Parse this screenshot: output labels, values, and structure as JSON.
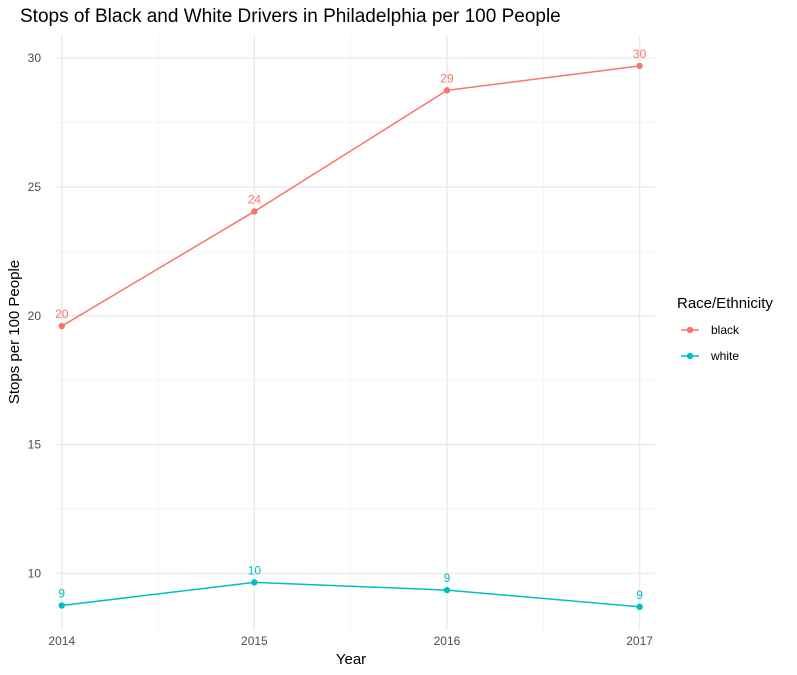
{
  "chart_data": {
    "type": "line",
    "title": "Stops of Black and White Drivers in Philadelphia per 100 People",
    "xlabel": "Year",
    "ylabel": "Stops per 100 People",
    "x": [
      2014,
      2015,
      2016,
      2017
    ],
    "x_tick_labels": [
      "2014",
      "2015",
      "2016",
      "2017"
    ],
    "xlim": [
      2013.97,
      2017.08
    ],
    "ylim": [
      7.8,
      30.9
    ],
    "y_ticks": [
      10,
      15,
      20,
      25,
      30
    ],
    "y_tick_labels": [
      "10",
      "15",
      "20",
      "25",
      "30"
    ],
    "grid": true,
    "legend": {
      "title": "Race/Ethnicity",
      "placement": "right"
    },
    "series": [
      {
        "name": "black",
        "color": "#F8766D",
        "values": [
          19.6,
          24.05,
          28.75,
          29.7
        ],
        "labels": [
          "20",
          "24",
          "29",
          "30"
        ]
      },
      {
        "name": "white",
        "color": "#00BFC4",
        "values": [
          8.75,
          9.65,
          9.35,
          8.7
        ],
        "labels": [
          "9",
          "10",
          "9",
          "9"
        ]
      }
    ]
  }
}
